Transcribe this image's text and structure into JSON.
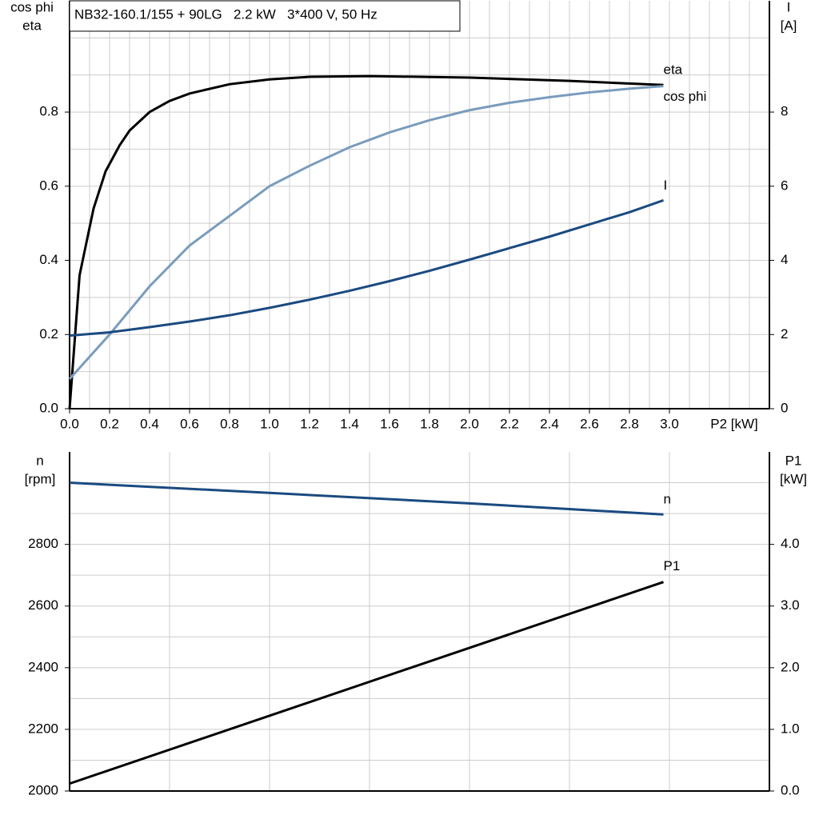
{
  "chart_data": [
    {
      "type": "line",
      "title": "NB32-160.1/155 + 90LG   2.2 kW   3*400 V, 50 Hz",
      "xlabel": "P2 [kW]",
      "ylabel": [
        "cos phi",
        "eta"
      ],
      "y2label": [
        "I",
        "[A]"
      ],
      "xlim": [
        0,
        3.5
      ],
      "ylim": [
        0,
        1.1
      ],
      "y2lim": [
        0,
        11
      ],
      "xticks": [
        {
          "value": 0,
          "label": "0.0"
        },
        0.2,
        0.4,
        0.6,
        0.8,
        {
          "value": 1,
          "label": "1.0"
        },
        1.2,
        1.4,
        1.6,
        1.8,
        {
          "value": 2,
          "label": "2.0"
        },
        2.2,
        2.4,
        2.6,
        2.8,
        {
          "value": 3,
          "label": "3.0"
        }
      ],
      "yticks": [
        {
          "value": 0,
          "label": "0.0"
        },
        0.2,
        0.4,
        0.6,
        0.8
      ],
      "y2ticks": [
        0,
        2,
        4,
        6,
        8
      ],
      "xgrid": [
        0.1,
        0.2,
        0.3,
        0.4,
        0.5,
        0.6,
        0.7,
        0.8,
        0.9,
        1.0,
        1.1,
        1.2,
        1.3,
        1.4,
        1.5,
        1.6,
        1.7,
        1.8,
        1.9,
        2.0,
        2.1,
        2.2,
        2.3,
        2.4,
        2.5,
        2.6,
        2.7,
        2.8,
        2.9,
        3.0,
        3.1,
        3.2,
        3.3,
        3.4
      ],
      "ygrid": [
        0.1,
        0.2,
        0.3,
        0.4,
        0.5,
        0.6,
        0.7,
        0.8,
        0.9,
        1.0
      ],
      "series": [
        {
          "name": "eta",
          "color": "#000000",
          "x": [
            0,
            0.05,
            0.12,
            0.18,
            0.25,
            0.3,
            0.4,
            0.5,
            0.6,
            0.8,
            1.0,
            1.2,
            1.5,
            2.0,
            2.5,
            2.97
          ],
          "values": [
            0,
            0.36,
            0.54,
            0.64,
            0.71,
            0.75,
            0.8,
            0.83,
            0.85,
            0.875,
            0.888,
            0.895,
            0.897,
            0.893,
            0.884,
            0.873
          ]
        },
        {
          "name": "cos phi",
          "color": "#7a9cbc",
          "x": [
            0,
            0.2,
            0.4,
            0.6,
            0.8,
            1.0,
            1.2,
            1.4,
            1.6,
            1.8,
            2.0,
            2.2,
            2.4,
            2.6,
            2.8,
            2.97
          ],
          "values": [
            0.08,
            0.2,
            0.33,
            0.44,
            0.52,
            0.6,
            0.655,
            0.705,
            0.745,
            0.778,
            0.805,
            0.825,
            0.84,
            0.853,
            0.863,
            0.87
          ]
        },
        {
          "name": "I",
          "color": "#1a4a80",
          "axis": "y2",
          "x": [
            0,
            0.2,
            0.4,
            0.6,
            0.8,
            1.0,
            1.2,
            1.4,
            1.6,
            1.8,
            2.0,
            2.2,
            2.4,
            2.6,
            2.8,
            2.97
          ],
          "values": [
            1.97,
            2.06,
            2.2,
            2.35,
            2.52,
            2.72,
            2.94,
            3.18,
            3.44,
            3.72,
            4.02,
            4.33,
            4.64,
            4.97,
            5.3,
            5.62
          ]
        }
      ]
    },
    {
      "type": "line",
      "ylabel": [
        "n",
        "[rpm]"
      ],
      "y2label": [
        "P1",
        "[kW]"
      ],
      "xlim": [
        0,
        3.5
      ],
      "ylim": [
        2000,
        3100
      ],
      "y2lim": [
        0,
        5.5
      ],
      "yticks": [
        2000,
        2200,
        2400,
        2600,
        2800
      ],
      "y2ticks": [
        {
          "value": 0,
          "label": "0.0"
        },
        {
          "value": 1,
          "label": "1.0"
        },
        {
          "value": 2,
          "label": "2.0"
        },
        {
          "value": 3,
          "label": "3.0"
        },
        {
          "value": 4,
          "label": "4.0"
        }
      ],
      "xgrid": [
        0.5,
        1.0,
        1.5,
        2.0,
        2.5,
        3.0
      ],
      "ygrid": [
        2100,
        2200,
        2300,
        2400,
        2500,
        2600,
        2700,
        2800,
        2900,
        3000
      ],
      "series": [
        {
          "name": "n",
          "color": "#1a4a80",
          "x": [
            0,
            1.0,
            2.0,
            2.97
          ],
          "values": [
            3000,
            2967,
            2933,
            2897
          ]
        },
        {
          "name": "P1",
          "color": "#000000",
          "axis": "y2",
          "x": [
            0,
            2.97
          ],
          "values": [
            0.12,
            3.39
          ]
        }
      ]
    }
  ]
}
